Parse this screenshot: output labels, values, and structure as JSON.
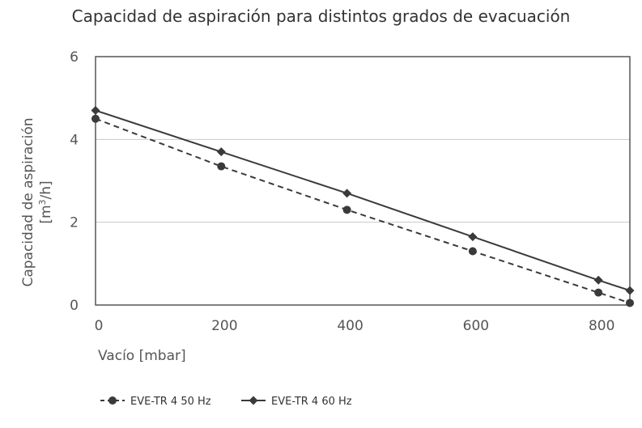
{
  "chart_data": {
    "type": "line",
    "title": "Capacidad de aspiración para distintos grados de evacuación",
    "xlabel": "Vacío [mbar]",
    "ylabel_line1": "Capacidad de aspiración",
    "ylabel_line2_prefix": "[m",
    "ylabel_line2_sup": "3",
    "ylabel_line2_suffix": "/h]",
    "xlim": [
      0,
      850
    ],
    "ylim": [
      0,
      6
    ],
    "xticks": [
      0,
      200,
      400,
      600,
      800
    ],
    "yticks": [
      0,
      2,
      4,
      6
    ],
    "grid": "horizontal",
    "legend_position": "bottom-left",
    "series": [
      {
        "name": "EVE-TR 4 50 Hz",
        "marker": "circle",
        "line": "dashed",
        "x": [
          0,
          200,
          400,
          600,
          800,
          850
        ],
        "y": [
          4.5,
          3.35,
          2.3,
          1.3,
          0.3,
          0.05
        ]
      },
      {
        "name": "EVE-TR 4 60 Hz",
        "marker": "diamond",
        "line": "solid",
        "x": [
          0,
          200,
          400,
          600,
          800,
          850
        ],
        "y": [
          4.7,
          3.7,
          2.7,
          1.65,
          0.6,
          0.35
        ]
      }
    ],
    "colors": {
      "series": "#3a3a3a",
      "grid": "#c8c8c8",
      "frame": "#555555"
    }
  }
}
